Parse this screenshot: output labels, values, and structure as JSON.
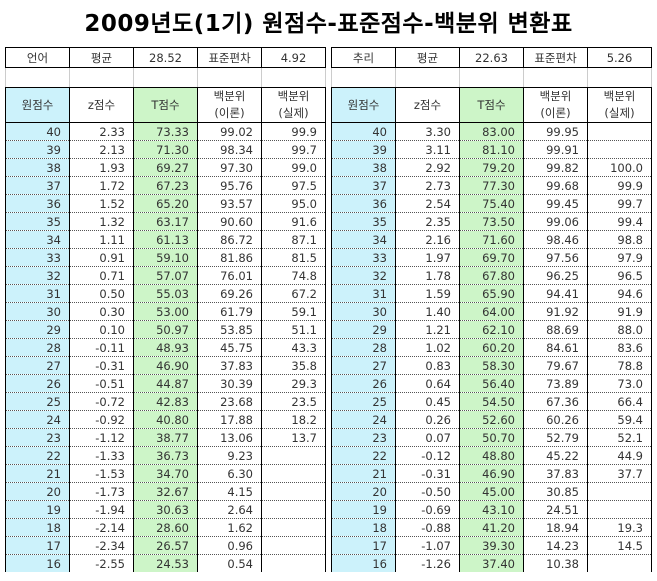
{
  "title": "2009년도(1기) 원점수-표준점수-백분위 변환표",
  "colors": {
    "raw_bg": "#ccf2fb",
    "t_bg": "#cdf5c8"
  },
  "headers": [
    "원점수",
    "z점수",
    "T점수",
    "백분위\n(이론)",
    "백분위\n(실제)"
  ],
  "tables": [
    {
      "subject": "언어",
      "mean_label": "평균",
      "mean": "28.52",
      "sd_label": "표준편차",
      "sd": "4.92",
      "rows": [
        [
          "40",
          "2.33",
          "73.33",
          "99.02",
          "99.9"
        ],
        [
          "39",
          "2.13",
          "71.30",
          "98.34",
          "99.7"
        ],
        [
          "38",
          "1.93",
          "69.27",
          "97.30",
          "99.0"
        ],
        [
          "37",
          "1.72",
          "67.23",
          "95.76",
          "97.5"
        ],
        [
          "36",
          "1.52",
          "65.20",
          "93.57",
          "95.0"
        ],
        [
          "35",
          "1.32",
          "63.17",
          "90.60",
          "91.6"
        ],
        [
          "34",
          "1.11",
          "61.13",
          "86.72",
          "87.1"
        ],
        [
          "33",
          "0.91",
          "59.10",
          "81.86",
          "81.5"
        ],
        [
          "32",
          "0.71",
          "57.07",
          "76.01",
          "74.8"
        ],
        [
          "31",
          "0.50",
          "55.03",
          "69.26",
          "67.2"
        ],
        [
          "30",
          "0.30",
          "53.00",
          "61.79",
          "59.1"
        ],
        [
          "29",
          "0.10",
          "50.97",
          "53.85",
          "51.1"
        ],
        [
          "28",
          "-0.11",
          "48.93",
          "45.75",
          "43.3"
        ],
        [
          "27",
          "-0.31",
          "46.90",
          "37.83",
          "35.8"
        ],
        [
          "26",
          "-0.51",
          "44.87",
          "30.39",
          "29.3"
        ],
        [
          "25",
          "-0.72",
          "42.83",
          "23.68",
          "23.5"
        ],
        [
          "24",
          "-0.92",
          "40.80",
          "17.88",
          "18.2"
        ],
        [
          "23",
          "-1.12",
          "38.77",
          "13.06",
          "13.7"
        ],
        [
          "22",
          "-1.33",
          "36.73",
          "9.23",
          ""
        ],
        [
          "21",
          "-1.53",
          "34.70",
          "6.30",
          ""
        ],
        [
          "20",
          "-1.73",
          "32.67",
          "4.15",
          ""
        ],
        [
          "19",
          "-1.94",
          "30.63",
          "2.64",
          ""
        ],
        [
          "18",
          "-2.14",
          "28.60",
          "1.62",
          ""
        ],
        [
          "17",
          "-2.34",
          "26.57",
          "0.96",
          ""
        ],
        [
          "16",
          "-2.55",
          "24.53",
          "0.54",
          ""
        ]
      ]
    },
    {
      "subject": "추리",
      "mean_label": "평균",
      "mean": "22.63",
      "sd_label": "표준편차",
      "sd": "5.26",
      "rows": [
        [
          "40",
          "3.30",
          "83.00",
          "99.95",
          ""
        ],
        [
          "39",
          "3.11",
          "81.10",
          "99.91",
          ""
        ],
        [
          "38",
          "2.92",
          "79.20",
          "99.82",
          "100.0"
        ],
        [
          "37",
          "2.73",
          "77.30",
          "99.68",
          "99.9"
        ],
        [
          "36",
          "2.54",
          "75.40",
          "99.45",
          "99.7"
        ],
        [
          "35",
          "2.35",
          "73.50",
          "99.06",
          "99.4"
        ],
        [
          "34",
          "2.16",
          "71.60",
          "98.46",
          "98.8"
        ],
        [
          "33",
          "1.97",
          "69.70",
          "97.56",
          "97.9"
        ],
        [
          "32",
          "1.78",
          "67.80",
          "96.25",
          "96.5"
        ],
        [
          "31",
          "1.59",
          "65.90",
          "94.41",
          "94.6"
        ],
        [
          "30",
          "1.40",
          "64.00",
          "91.92",
          "91.9"
        ],
        [
          "29",
          "1.21",
          "62.10",
          "88.69",
          "88.0"
        ],
        [
          "28",
          "1.02",
          "60.20",
          "84.61",
          "83.6"
        ],
        [
          "27",
          "0.83",
          "58.30",
          "79.67",
          "78.8"
        ],
        [
          "26",
          "0.64",
          "56.40",
          "73.89",
          "73.0"
        ],
        [
          "25",
          "0.45",
          "54.50",
          "67.36",
          "66.4"
        ],
        [
          "24",
          "0.26",
          "52.60",
          "60.26",
          "59.4"
        ],
        [
          "23",
          "0.07",
          "50.70",
          "52.79",
          "52.1"
        ],
        [
          "22",
          "-0.12",
          "48.80",
          "45.22",
          "44.9"
        ],
        [
          "21",
          "-0.31",
          "46.90",
          "37.83",
          "37.7"
        ],
        [
          "20",
          "-0.50",
          "45.00",
          "30.85",
          ""
        ],
        [
          "19",
          "-0.69",
          "43.10",
          "24.51",
          ""
        ],
        [
          "18",
          "-0.88",
          "41.20",
          "18.94",
          "19.3"
        ],
        [
          "17",
          "-1.07",
          "39.30",
          "14.23",
          "14.5"
        ],
        [
          "16",
          "-1.26",
          "37.40",
          "10.38",
          ""
        ]
      ]
    }
  ]
}
